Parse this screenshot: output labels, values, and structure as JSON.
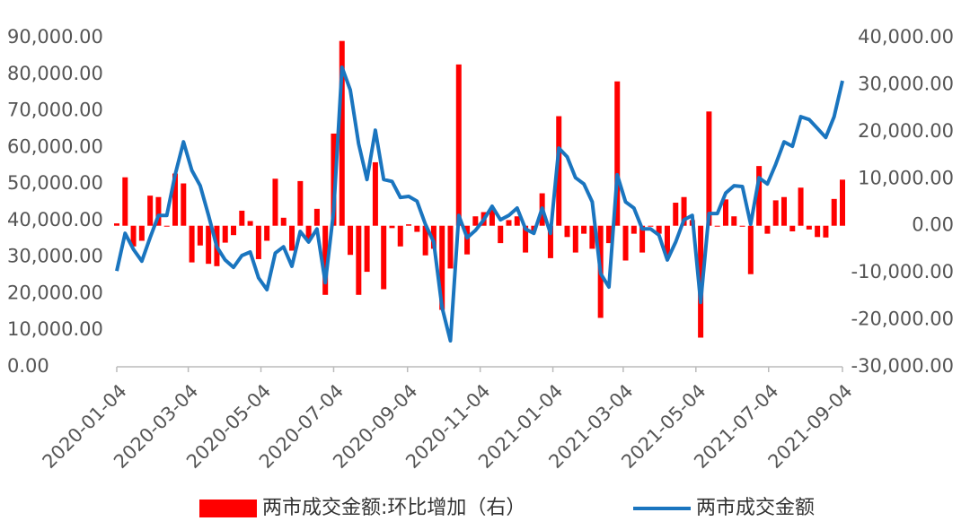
{
  "chart_data": {
    "type": "bar-line",
    "x": [
      "2020-01-04",
      "2020-01-11",
      "2020-01-18",
      "2020-01-25",
      "2020-02-01",
      "2020-02-08",
      "2020-02-15",
      "2020-02-22",
      "2020-02-29",
      "2020-03-07",
      "2020-03-14",
      "2020-03-21",
      "2020-03-28",
      "2020-04-04",
      "2020-04-11",
      "2020-04-18",
      "2020-04-25",
      "2020-05-02",
      "2020-05-09",
      "2020-05-16",
      "2020-05-23",
      "2020-05-30",
      "2020-06-06",
      "2020-06-13",
      "2020-06-20",
      "2020-06-27",
      "2020-07-04",
      "2020-07-11",
      "2020-07-18",
      "2020-07-25",
      "2020-08-01",
      "2020-08-08",
      "2020-08-15",
      "2020-08-22",
      "2020-08-29",
      "2020-09-05",
      "2020-09-12",
      "2020-09-19",
      "2020-09-26",
      "2020-10-03",
      "2020-10-10",
      "2020-10-17",
      "2020-10-24",
      "2020-10-31",
      "2020-11-07",
      "2020-11-14",
      "2020-11-21",
      "2020-11-28",
      "2020-12-05",
      "2020-12-12",
      "2020-12-19",
      "2020-12-26",
      "2021-01-02",
      "2021-01-09",
      "2021-01-16",
      "2021-01-23",
      "2021-01-30",
      "2021-02-06",
      "2021-02-13",
      "2021-02-20",
      "2021-02-27",
      "2021-03-06",
      "2021-03-13",
      "2021-03-20",
      "2021-03-27",
      "2021-04-03",
      "2021-04-10",
      "2021-04-17",
      "2021-04-24",
      "2021-05-01",
      "2021-05-08",
      "2021-05-15",
      "2021-05-22",
      "2021-05-29",
      "2021-06-05",
      "2021-06-12",
      "2021-06-19",
      "2021-06-26",
      "2021-07-03",
      "2021-07-10",
      "2021-07-17",
      "2021-07-24",
      "2021-07-31",
      "2021-08-07",
      "2021-08-14",
      "2021-08-21",
      "2021-08-28",
      "2021-09-04"
    ],
    "series": [
      {
        "name": "两市成交金额:环比增加（右）",
        "type": "bar",
        "axis": "y2",
        "color": "#ff0000",
        "values": [
          500,
          10300,
          -4400,
          -3200,
          6400,
          6100,
          0,
          11100,
          9000,
          -7800,
          -4200,
          -8100,
          -8600,
          -3600,
          -2000,
          3200,
          1000,
          -7100,
          -3200,
          10000,
          1700,
          -5300,
          9500,
          -2900,
          3600,
          -14700,
          19600,
          39300,
          -6200,
          -14700,
          -9800,
          13500,
          -13500,
          -500,
          -4400,
          300,
          -1300,
          -6300,
          -4900,
          -17900,
          -9100,
          34300,
          -6100,
          2000,
          2900,
          3700,
          -3700,
          1200,
          2000,
          -5700,
          -1200,
          6900,
          -6900,
          23300,
          -2400,
          -5700,
          -1700,
          -4900,
          -19600,
          -3700,
          30700,
          -7400,
          -1700,
          -5700,
          0,
          -1700,
          -6800,
          4900,
          6100,
          1200,
          -23800,
          24300,
          0,
          5600,
          2000,
          -200,
          -10300,
          12700,
          -1700,
          5400,
          6100,
          -1200,
          8100,
          -800,
          -2400,
          -2500,
          5700,
          9800
        ]
      },
      {
        "name": "两市成交金额",
        "type": "line",
        "color": "#1a75bf",
        "values": [
          26200,
          36500,
          32100,
          28900,
          35300,
          41400,
          41400,
          52500,
          61500,
          53700,
          49500,
          41400,
          32800,
          29200,
          27200,
          30400,
          31400,
          24300,
          21100,
          31100,
          32800,
          27500,
          37000,
          34100,
          37700,
          23000,
          42600,
          81900,
          75700,
          61000,
          51200,
          64700,
          51200,
          50700,
          46300,
          46600,
          45300,
          39000,
          34100,
          16200,
          7100,
          41400,
          35300,
          37300,
          40200,
          43900,
          40200,
          41400,
          43400,
          37700,
          36500,
          43400,
          36500,
          59800,
          57400,
          51700,
          50000,
          45100,
          25500,
          21800,
          52500,
          45100,
          43400,
          37700,
          37700,
          36000,
          29200,
          34100,
          40200,
          41400,
          17600,
          41900,
          41900,
          47500,
          49500,
          49300,
          39000,
          51700,
          50000,
          55400,
          61500,
          60300,
          68400,
          67600,
          65200,
          62700,
          68400,
          78200
        ]
      }
    ],
    "xlim": [
      "2020-01-04",
      "2021-09-04"
    ],
    "xticks": [
      "2020-01-04",
      "2020-03-04",
      "2020-05-04",
      "2020-07-04",
      "2020-09-04",
      "2020-11-04",
      "2021-01-04",
      "2021-03-04",
      "2021-05-04",
      "2021-07-04",
      "2021-09-04"
    ],
    "ylim": [
      0,
      90000
    ],
    "yticks": [
      {
        "value": 0,
        "label": "0.00"
      },
      {
        "value": 10000,
        "label": "10,000.00"
      },
      {
        "value": 20000,
        "label": "20,000.00"
      },
      {
        "value": 30000,
        "label": "30,000.00"
      },
      {
        "value": 40000,
        "label": "40,000.00"
      },
      {
        "value": 50000,
        "label": "50,000.00"
      },
      {
        "value": 60000,
        "label": "60,000.00"
      },
      {
        "value": 70000,
        "label": "70,000.00"
      },
      {
        "value": 80000,
        "label": "80,000.00"
      },
      {
        "value": 90000,
        "label": "90,000.00"
      }
    ],
    "y2lim": [
      -30000,
      40000
    ],
    "y2ticks": [
      {
        "value": -30000,
        "label": "-30,000.00"
      },
      {
        "value": -20000,
        "label": "-20,000.00"
      },
      {
        "value": -10000,
        "label": "-10,000.00"
      },
      {
        "value": 0,
        "label": "0.00"
      },
      {
        "value": 10000,
        "label": "10,000.00"
      },
      {
        "value": 20000,
        "label": "20,000.00"
      },
      {
        "value": 30000,
        "label": "30,000.00"
      },
      {
        "value": 40000,
        "label": "40,000.00"
      }
    ],
    "legend": "bottom"
  }
}
